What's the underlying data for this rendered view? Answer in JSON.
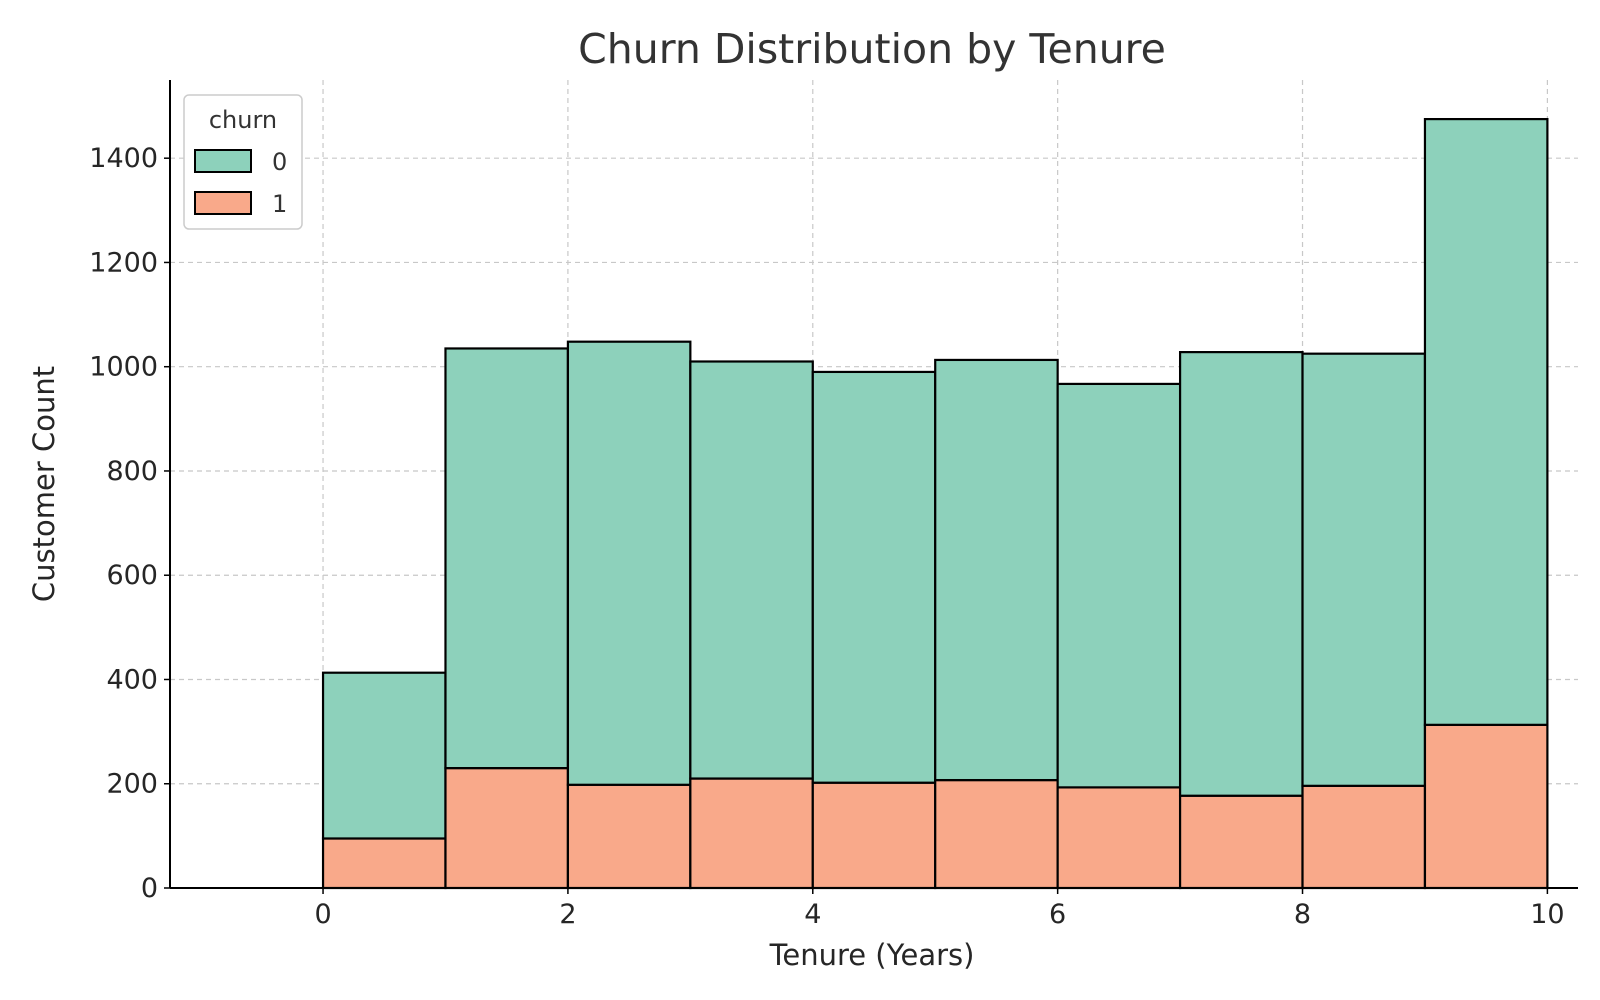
{
  "chart_data": {
    "type": "bar",
    "stacked": true,
    "title": "Churn Distribution by Tenure",
    "xlabel": "Tenure (Years)",
    "ylabel": "Customer Count",
    "bins": [
      [
        0,
        1
      ],
      [
        1,
        2
      ],
      [
        2,
        3
      ],
      [
        3,
        4
      ],
      [
        4,
        5
      ],
      [
        5,
        6
      ],
      [
        6,
        7
      ],
      [
        7,
        8
      ],
      [
        8,
        9
      ],
      [
        9,
        10
      ]
    ],
    "series": [
      {
        "name": "1",
        "values": [
          95,
          230,
          198,
          210,
          202,
          207,
          193,
          177,
          196,
          313
        ],
        "color": "#f9a98a"
      },
      {
        "name": "0",
        "values": [
          318,
          805,
          850,
          800,
          788,
          806,
          774,
          851,
          829,
          1162
        ],
        "color": "#8dd1bb"
      }
    ],
    "xlim": [
      -1.25,
      10.25
    ],
    "ylim": [
      0,
      1550
    ],
    "xticks": [
      0,
      2,
      4,
      6,
      8,
      10
    ],
    "yticks": [
      0,
      200,
      400,
      600,
      800,
      1000,
      1200,
      1400
    ],
    "grid": true,
    "legend": {
      "title": "churn",
      "entries": [
        "0",
        "1"
      ],
      "placement": "upper-left"
    }
  }
}
